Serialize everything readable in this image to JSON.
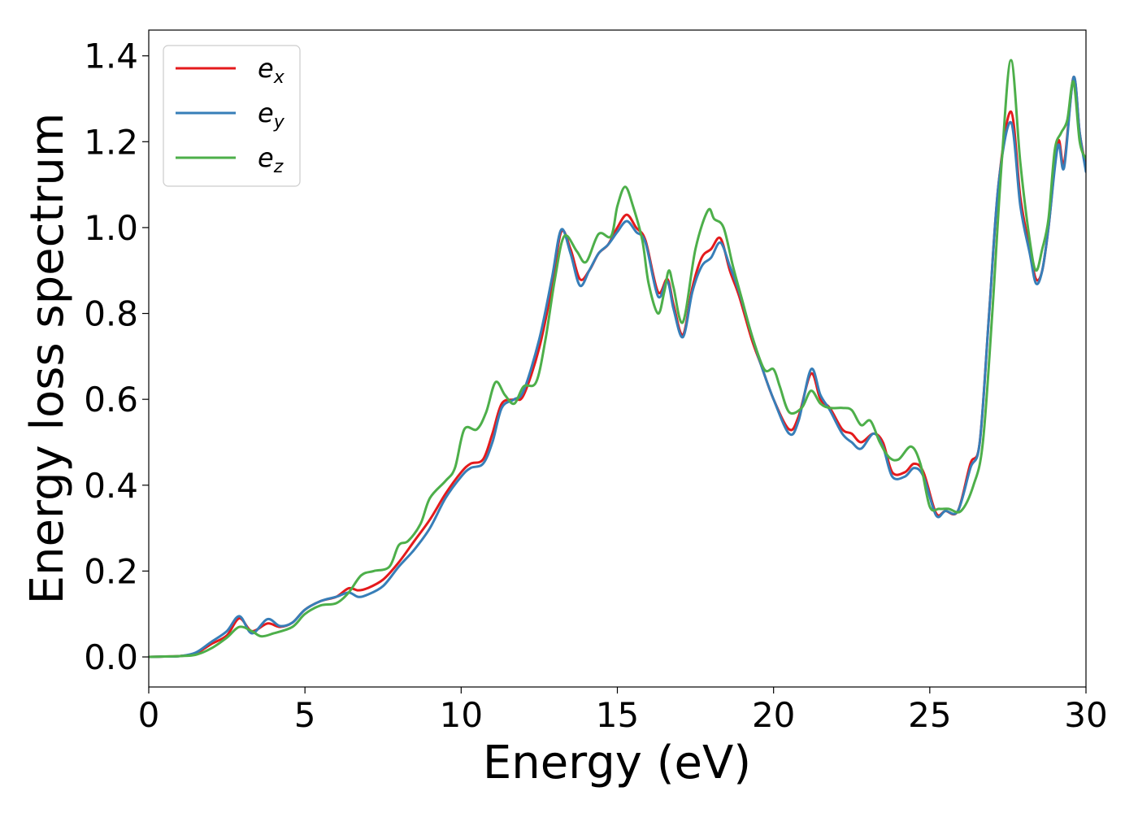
{
  "chart_data": {
    "type": "line",
    "title": "",
    "xlabel": "Energy (eV)",
    "ylabel": "Energy loss spectrum",
    "xlim": [
      0,
      30
    ],
    "ylim": [
      -0.07,
      1.46
    ],
    "xticks": [
      0,
      5,
      10,
      15,
      20,
      25,
      30
    ],
    "xtick_labels": [
      "0",
      "5",
      "10",
      "15",
      "20",
      "25",
      "30"
    ],
    "yticks": [
      0.0,
      0.2,
      0.4,
      0.6,
      0.8,
      1.0,
      1.2,
      1.4
    ],
    "ytick_labels": [
      "0.0",
      "0.2",
      "0.4",
      "0.6",
      "0.8",
      "1.0",
      "1.2",
      "1.4"
    ],
    "grid": false,
    "legend_position": "top-left",
    "series": [
      {
        "name": "e",
        "subscript": "x",
        "color": "#e41a1c",
        "x": [
          0,
          0.5,
          1.0,
          1.5,
          2.0,
          2.5,
          2.9,
          3.3,
          3.8,
          4.2,
          4.6,
          5.0,
          5.5,
          6.0,
          6.4,
          6.7,
          7.0,
          7.5,
          8.0,
          8.5,
          9.0,
          9.5,
          10.0,
          10.3,
          10.7,
          11.0,
          11.3,
          11.7,
          12.0,
          12.5,
          12.9,
          13.2,
          13.5,
          13.8,
          14.1,
          14.4,
          14.7,
          15.0,
          15.3,
          15.6,
          15.9,
          16.3,
          16.6,
          16.8,
          17.1,
          17.4,
          17.7,
          18.0,
          18.3,
          18.6,
          18.9,
          19.3,
          19.6,
          20.0,
          20.5,
          20.8,
          21.2,
          21.5,
          21.8,
          22.2,
          22.5,
          22.8,
          23.2,
          23.5,
          23.8,
          24.2,
          24.5,
          24.8,
          25.2,
          25.5,
          25.9,
          26.3,
          26.6,
          26.9,
          27.2,
          27.6,
          27.9,
          28.2,
          28.4,
          28.6,
          28.8,
          29.1,
          29.3,
          29.6,
          29.8,
          30.0
        ],
        "y": [
          0,
          0.001,
          0.002,
          0.008,
          0.03,
          0.05,
          0.09,
          0.06,
          0.078,
          0.07,
          0.08,
          0.11,
          0.13,
          0.14,
          0.16,
          0.155,
          0.16,
          0.18,
          0.22,
          0.27,
          0.32,
          0.38,
          0.43,
          0.45,
          0.46,
          0.52,
          0.59,
          0.6,
          0.61,
          0.72,
          0.86,
          0.99,
          0.95,
          0.88,
          0.9,
          0.94,
          0.96,
          1.0,
          1.03,
          1.0,
          0.97,
          0.85,
          0.88,
          0.82,
          0.75,
          0.86,
          0.93,
          0.95,
          0.975,
          0.9,
          0.84,
          0.74,
          0.68,
          0.6,
          0.53,
          0.56,
          0.66,
          0.6,
          0.58,
          0.53,
          0.52,
          0.5,
          0.52,
          0.5,
          0.43,
          0.43,
          0.45,
          0.43,
          0.335,
          0.34,
          0.34,
          0.45,
          0.5,
          0.8,
          1.1,
          1.27,
          1.07,
          0.95,
          0.88,
          0.9,
          1.0,
          1.2,
          1.15,
          1.35,
          1.22,
          1.14
        ]
      },
      {
        "name": "e",
        "subscript": "y",
        "color": "#377eb8",
        "x": [
          0,
          0.5,
          1.0,
          1.5,
          2.0,
          2.5,
          2.9,
          3.3,
          3.8,
          4.2,
          4.6,
          5.0,
          5.5,
          6.0,
          6.4,
          6.7,
          7.0,
          7.5,
          8.0,
          8.5,
          9.0,
          9.5,
          10.0,
          10.3,
          10.7,
          11.0,
          11.3,
          11.7,
          12.0,
          12.5,
          12.9,
          13.2,
          13.5,
          13.8,
          14.1,
          14.4,
          14.7,
          15.0,
          15.3,
          15.6,
          15.9,
          16.3,
          16.6,
          16.8,
          17.1,
          17.4,
          17.7,
          18.0,
          18.3,
          18.6,
          18.9,
          19.3,
          19.6,
          20.0,
          20.5,
          20.8,
          21.2,
          21.5,
          21.8,
          22.2,
          22.5,
          22.8,
          23.2,
          23.5,
          23.8,
          24.2,
          24.5,
          24.8,
          25.2,
          25.5,
          25.9,
          26.3,
          26.6,
          26.9,
          27.2,
          27.6,
          27.9,
          28.2,
          28.4,
          28.6,
          28.8,
          29.1,
          29.3,
          29.6,
          29.8,
          30.0
        ],
        "y": [
          0,
          0.001,
          0.002,
          0.01,
          0.035,
          0.06,
          0.095,
          0.055,
          0.088,
          0.072,
          0.08,
          0.11,
          0.13,
          0.14,
          0.15,
          0.14,
          0.145,
          0.165,
          0.21,
          0.25,
          0.3,
          0.37,
          0.42,
          0.44,
          0.45,
          0.5,
          0.58,
          0.6,
          0.62,
          0.74,
          0.88,
          0.995,
          0.94,
          0.865,
          0.9,
          0.94,
          0.96,
          0.99,
          1.015,
          0.99,
          0.965,
          0.84,
          0.875,
          0.81,
          0.745,
          0.85,
          0.91,
          0.93,
          0.965,
          0.91,
          0.85,
          0.75,
          0.68,
          0.6,
          0.52,
          0.55,
          0.67,
          0.61,
          0.575,
          0.52,
          0.5,
          0.485,
          0.52,
          0.49,
          0.42,
          0.42,
          0.44,
          0.42,
          0.33,
          0.34,
          0.34,
          0.44,
          0.5,
          0.8,
          1.1,
          1.245,
          1.05,
          0.94,
          0.87,
          0.9,
          1.0,
          1.19,
          1.14,
          1.35,
          1.22,
          1.13
        ]
      },
      {
        "name": "e",
        "subscript": "z",
        "color": "#4daf4a",
        "x": [
          0,
          0.5,
          1.0,
          1.5,
          2.0,
          2.5,
          2.9,
          3.3,
          3.6,
          4.0,
          4.6,
          5.0,
          5.5,
          6.0,
          6.4,
          6.8,
          7.2,
          7.7,
          8.0,
          8.3,
          8.7,
          9.0,
          9.5,
          9.8,
          10.1,
          10.5,
          10.8,
          11.1,
          11.4,
          11.7,
          12.0,
          12.4,
          12.7,
          13.0,
          13.3,
          13.7,
          14.0,
          14.4,
          14.8,
          15.0,
          15.25,
          15.5,
          15.8,
          16.0,
          16.3,
          16.5,
          16.65,
          16.8,
          17.1,
          17.5,
          17.9,
          18.1,
          18.4,
          18.7,
          19.0,
          19.3,
          19.7,
          20.0,
          20.2,
          20.5,
          20.9,
          21.2,
          21.5,
          21.8,
          22.2,
          22.5,
          22.8,
          23.1,
          23.4,
          23.7,
          24.0,
          24.4,
          24.7,
          25.0,
          25.3,
          25.6,
          26.0,
          26.4,
          26.7,
          27.0,
          27.3,
          27.6,
          27.9,
          28.2,
          28.4,
          28.6,
          28.8,
          29.0,
          29.2,
          29.4,
          29.6,
          29.8,
          30.0
        ],
        "y": [
          0,
          0.001,
          0.002,
          0.005,
          0.02,
          0.045,
          0.07,
          0.06,
          0.048,
          0.055,
          0.07,
          0.1,
          0.12,
          0.125,
          0.15,
          0.19,
          0.2,
          0.21,
          0.26,
          0.27,
          0.31,
          0.37,
          0.41,
          0.44,
          0.53,
          0.53,
          0.57,
          0.64,
          0.61,
          0.59,
          0.63,
          0.64,
          0.74,
          0.88,
          0.98,
          0.945,
          0.92,
          0.985,
          0.98,
          1.05,
          1.095,
          1.05,
          0.97,
          0.87,
          0.8,
          0.85,
          0.9,
          0.86,
          0.78,
          0.95,
          1.04,
          1.02,
          1.0,
          0.91,
          0.83,
          0.75,
          0.67,
          0.67,
          0.63,
          0.57,
          0.58,
          0.62,
          0.59,
          0.58,
          0.58,
          0.575,
          0.54,
          0.55,
          0.5,
          0.465,
          0.46,
          0.49,
          0.45,
          0.35,
          0.345,
          0.345,
          0.34,
          0.4,
          0.5,
          0.8,
          1.15,
          1.39,
          1.15,
          0.97,
          0.9,
          0.95,
          1.02,
          1.18,
          1.22,
          1.25,
          1.34,
          1.2,
          1.16
        ]
      }
    ]
  }
}
